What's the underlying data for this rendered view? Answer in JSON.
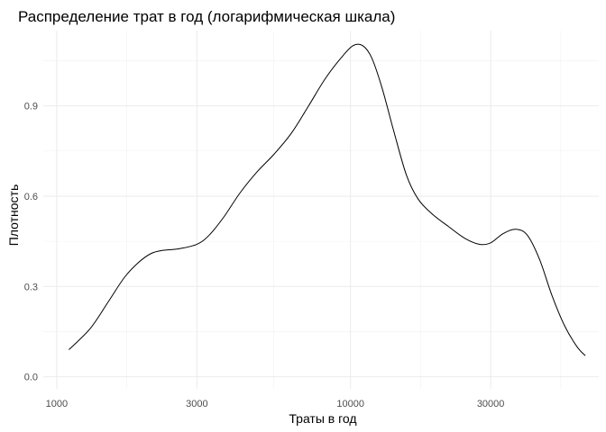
{
  "chart_data": {
    "type": "line",
    "title": "Распределение трат в год (логарифмическая шкала)",
    "xlabel": "Траты в год",
    "ylabel": "Плотность",
    "x_scale": "log10",
    "xlim": [
      900,
      70000
    ],
    "ylim": [
      -0.04,
      1.15
    ],
    "x_ticks": [
      {
        "value": 1000,
        "label": "1000"
      },
      {
        "value": 3000,
        "label": "3000"
      },
      {
        "value": 10000,
        "label": "10000"
      },
      {
        "value": 30000,
        "label": "30000"
      }
    ],
    "x_minor_ticks": [
      1732,
      5477,
      17320,
      51962
    ],
    "y_ticks": [
      {
        "value": 0.0,
        "label": "0.0"
      },
      {
        "value": 0.3,
        "label": "0.3"
      },
      {
        "value": 0.6,
        "label": "0.6"
      },
      {
        "value": 0.9,
        "label": "0.9"
      }
    ],
    "y_minor_ticks": [
      0.15,
      0.45,
      0.75,
      1.05
    ],
    "grid": true,
    "series": [
      {
        "x": [
          1100,
          1300,
          1500,
          1700,
          1900,
          2100,
          2300,
          2600,
          3000,
          3300,
          3700,
          4200,
          4800,
          5500,
          6300,
          7200,
          8200,
          9300,
          10200,
          11000,
          11800,
          12800,
          14000,
          15500,
          17000,
          19000,
          21500,
          24500,
          27500,
          30000,
          33000,
          36500,
          40000,
          44000,
          48500,
          53500,
          59000,
          63000
        ],
        "y": [
          0.09,
          0.16,
          0.25,
          0.33,
          0.38,
          0.41,
          0.42,
          0.425,
          0.44,
          0.47,
          0.53,
          0.61,
          0.68,
          0.74,
          0.81,
          0.9,
          0.99,
          1.06,
          1.1,
          1.1,
          1.06,
          0.96,
          0.82,
          0.67,
          0.59,
          0.54,
          0.5,
          0.46,
          0.44,
          0.445,
          0.475,
          0.49,
          0.47,
          0.39,
          0.27,
          0.17,
          0.1,
          0.07
        ]
      }
    ]
  }
}
